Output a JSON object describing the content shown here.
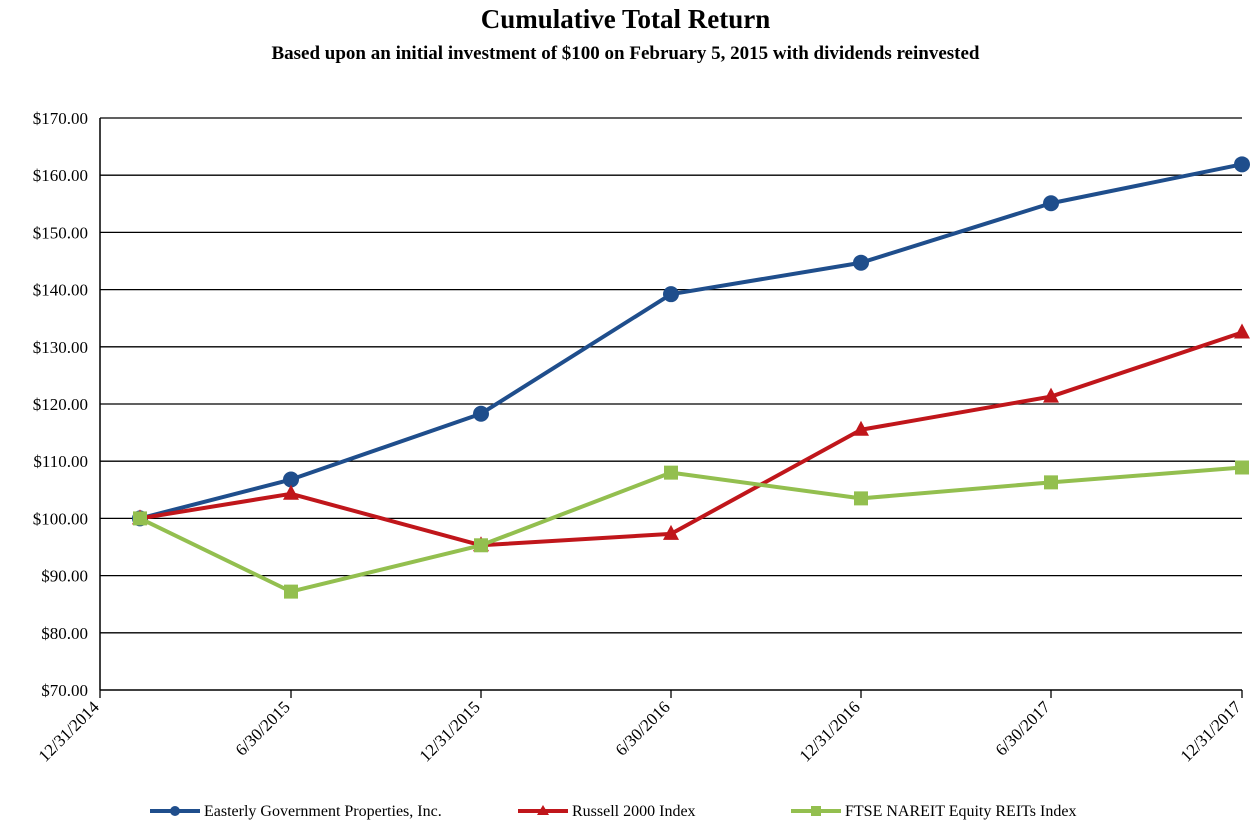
{
  "chart_data": {
    "type": "line",
    "title": "Cumulative Total Return",
    "subtitle": "Based upon an initial investment of $100 on February 5, 2015 with dividends reinvested",
    "categories": [
      "12/31/2014",
      "6/30/2015",
      "12/31/2015",
      "6/30/2016",
      "12/31/2016",
      "6/30/2017",
      "12/31/2017"
    ],
    "y_ticks": [
      "$70.00",
      "$80.00",
      "$90.00",
      "$100.00",
      "$110.00",
      "$120.00",
      "$130.00",
      "$140.00",
      "$150.00",
      "$160.00",
      "$170.00"
    ],
    "ylim": [
      70,
      170
    ],
    "y_step": 10,
    "grid": "horizontal",
    "legend_position": "bottom",
    "series": [
      {
        "name": "Easterly Government Properties, Inc.",
        "color": "#1f4e8c",
        "marker": "circle",
        "values": [
          100.0,
          106.8,
          118.3,
          139.2,
          144.7,
          155.1,
          161.9
        ]
      },
      {
        "name": "Russell 2000 Index",
        "color": "#c0161b",
        "marker": "triangle",
        "values": [
          100.0,
          104.3,
          95.3,
          97.3,
          115.5,
          121.3,
          132.5
        ]
      },
      {
        "name": "FTSE NAREIT Equity REITs Index",
        "color": "#93bf4f",
        "marker": "square",
        "values": [
          100.0,
          87.2,
          95.3,
          108.0,
          103.5,
          106.3,
          108.9
        ]
      }
    ]
  }
}
